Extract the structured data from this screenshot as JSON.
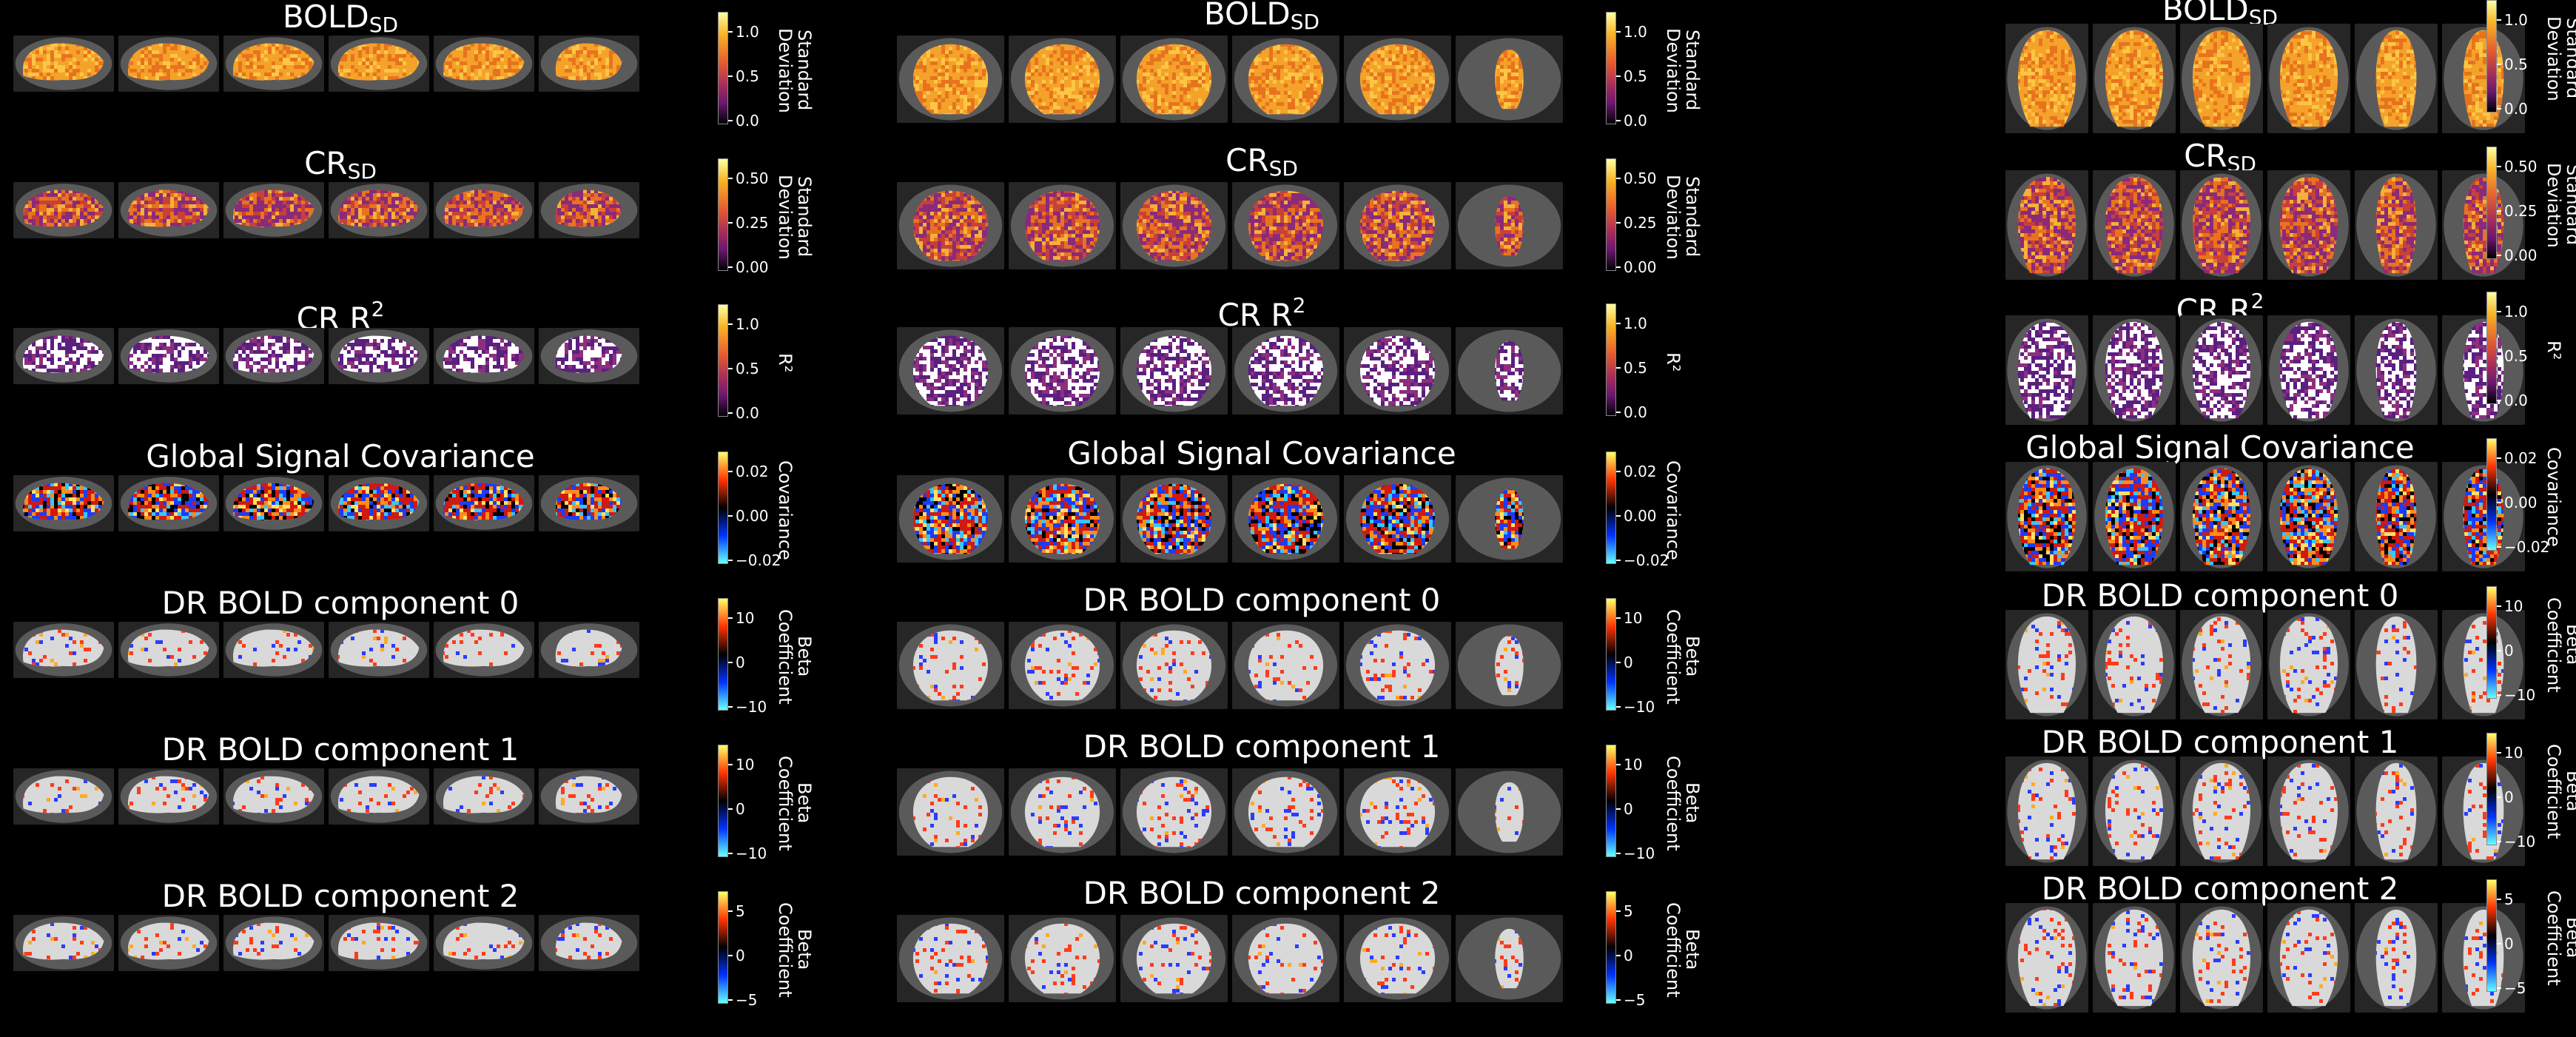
{
  "rows": [
    {
      "key": "bold_sd",
      "title_main": "BOLD",
      "title_sub": "SD",
      "title_sup": "",
      "colormap": "inferno",
      "ticks": [
        "1.0",
        "0.5",
        "0.0"
      ],
      "cbar_label": "Standard\nDeviation"
    },
    {
      "key": "cr_sd",
      "title_main": "CR",
      "title_sub": "SD",
      "title_sup": "",
      "colormap": "inferno",
      "ticks": [
        "0.50",
        "0.25",
        "0.00"
      ],
      "cbar_label": "Standard\nDeviation"
    },
    {
      "key": "cr_r2",
      "title_main": "CR R",
      "title_sub": "",
      "title_sup": "2",
      "colormap": "inferno",
      "ticks": [
        "1.0",
        "0.5",
        "0.0"
      ],
      "cbar_label": "R²"
    },
    {
      "key": "gsc",
      "title_main": "Global Signal Covariance",
      "title_sub": "",
      "title_sup": "",
      "colormap": "diverging",
      "ticks": [
        "0.02",
        "0.00",
        "−0.02"
      ],
      "cbar_label": "Covariance"
    },
    {
      "key": "dr0",
      "title_main": "DR BOLD component 0",
      "title_sub": "",
      "title_sup": "",
      "colormap": "diverging",
      "ticks": [
        "10",
        "0",
        "−10"
      ],
      "cbar_label": "Beta\nCoefficient"
    },
    {
      "key": "dr1",
      "title_main": "DR BOLD component 1",
      "title_sub": "",
      "title_sup": "",
      "colormap": "diverging",
      "ticks": [
        "10",
        "0",
        "−10"
      ],
      "cbar_label": "Beta\nCoefficient"
    },
    {
      "key": "dr2",
      "title_main": "DR BOLD component 2",
      "title_sub": "",
      "title_sup": "",
      "colormap": "diverging",
      "ticks": [
        "5",
        "0",
        "−5"
      ],
      "cbar_label": "Beta\nCoefficient"
    }
  ],
  "colors": {
    "inferno_top": "#fcffa4",
    "inferno_mid": "#e55c30",
    "inferno_low": "#6a176e",
    "inferno_bottom": "#000004",
    "div_top": "#ffff66",
    "div_upper": "#ff3300",
    "div_mid": "#000000",
    "div_lower": "#0033ff",
    "div_bottom": "#66ffff"
  }
}
